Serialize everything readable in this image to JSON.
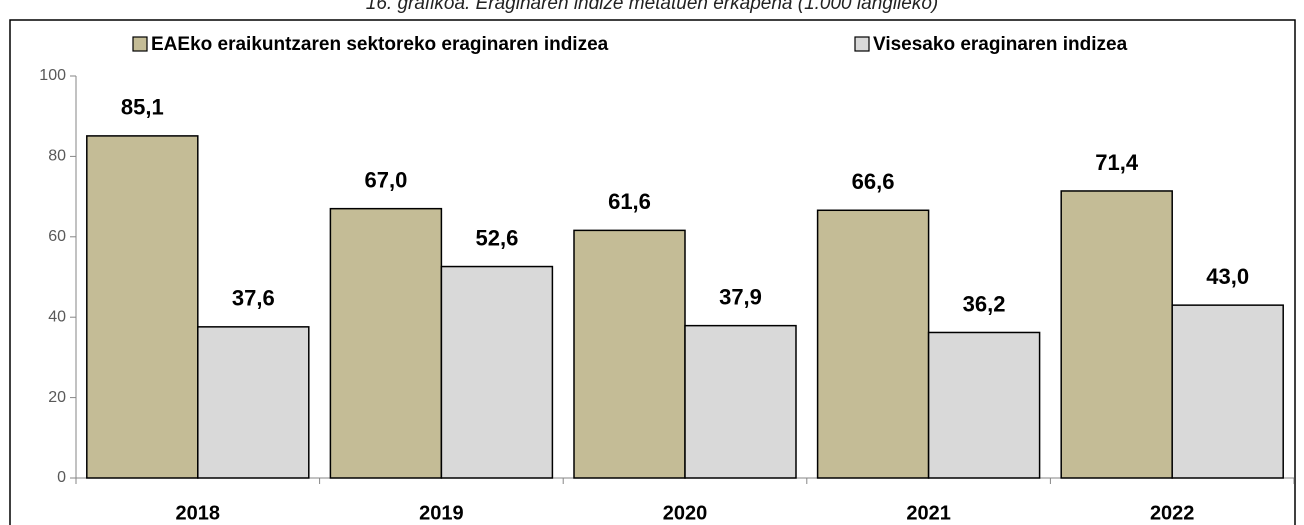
{
  "chart_data": {
    "type": "bar",
    "title": "16. grafikoa. Eraginaren indize metatuen erkapena (1.000 langileko)",
    "categories": [
      "2018",
      "2019",
      "2020",
      "2021",
      "2022"
    ],
    "series": [
      {
        "name": "EAEko eraikuntzaren sektoreko eraginaren indizea",
        "color": "#c4bc96",
        "values": [
          85.1,
          67.0,
          61.6,
          66.6,
          71.4
        ],
        "value_labels": [
          "85,1",
          "67,0",
          "61,6",
          "66,6",
          "71,4"
        ]
      },
      {
        "name": "Visesako eraginaren indizea",
        "color": "#d9d9d9",
        "values": [
          37.6,
          52.6,
          37.9,
          36.2,
          43.0
        ],
        "value_labels": [
          "37,6",
          "52,6",
          "37,9",
          "36,2",
          "43,0"
        ]
      }
    ],
    "ylim": [
      0,
      100
    ],
    "yticks": [
      0,
      20,
      40,
      60,
      80,
      100
    ],
    "grid": false,
    "legend": "top"
  }
}
